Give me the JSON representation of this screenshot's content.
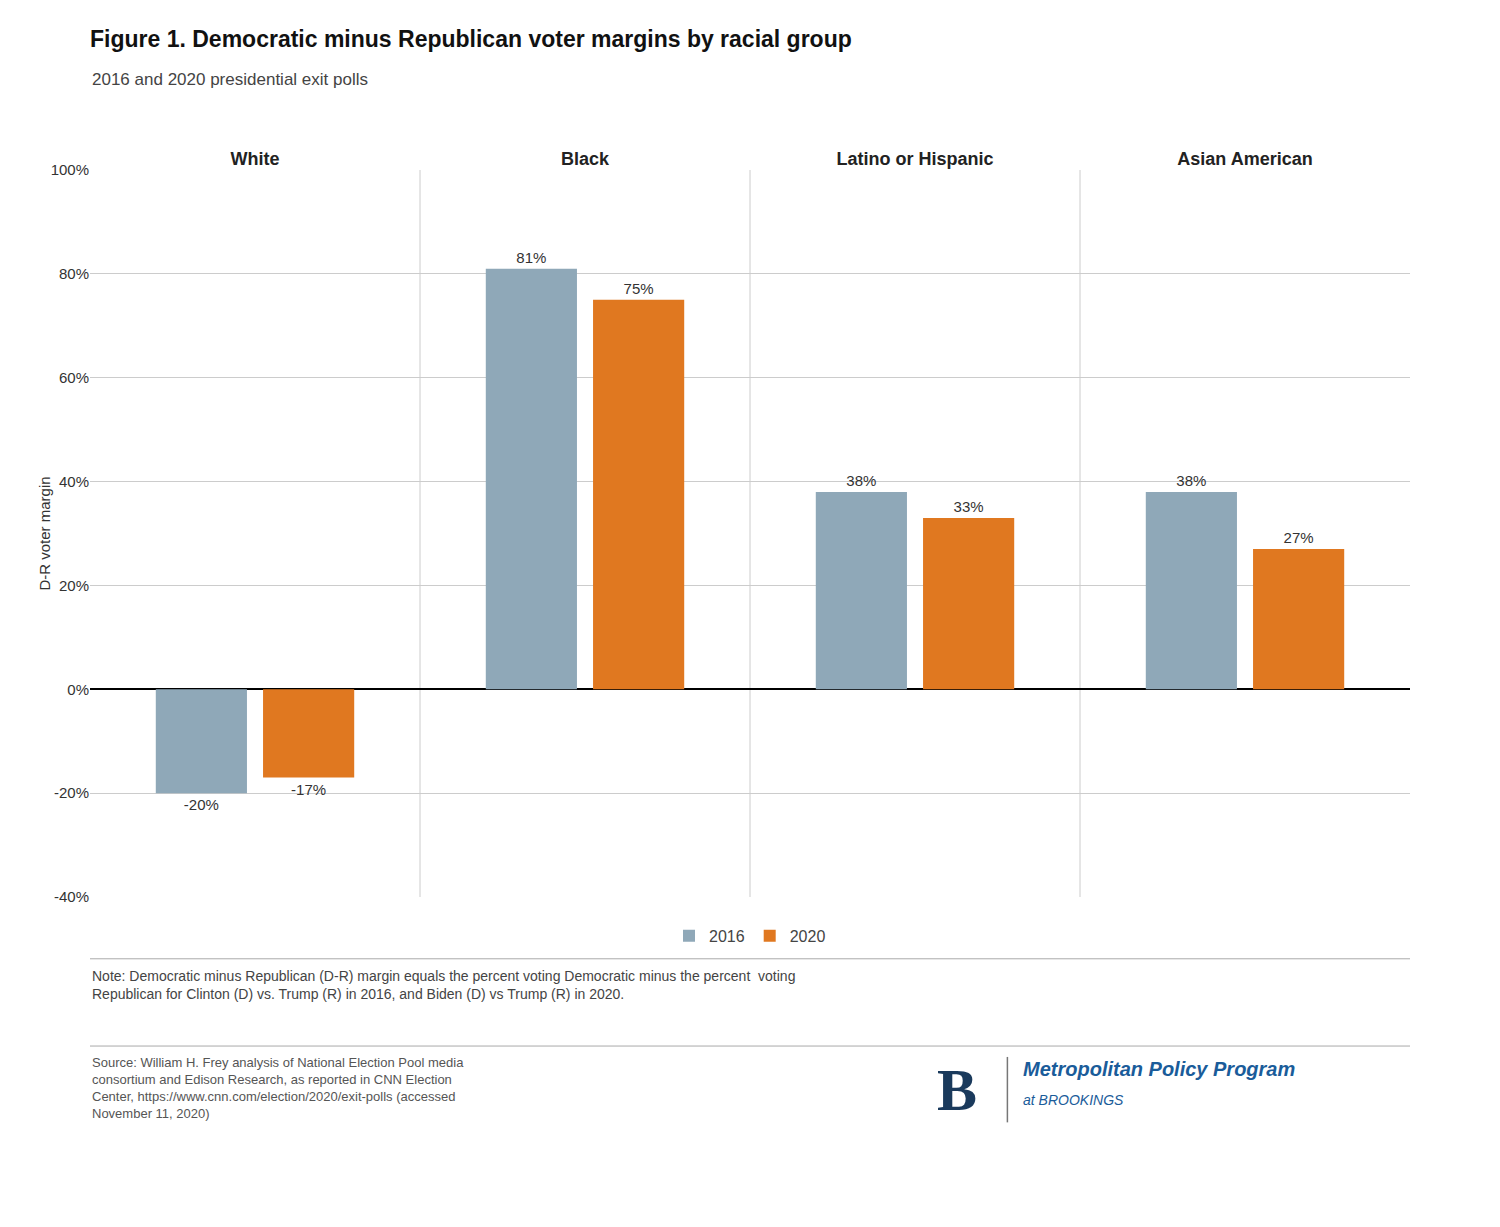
{
  "chart_data": {
    "type": "bar",
    "title": "Figure 1. Democratic minus Republican voter margins by racial group",
    "subtitle": "2016 and 2020 presidential exit polls",
    "ylabel": "D-R voter margin",
    "categories": [
      "White",
      "Black",
      "Latino or Hispanic",
      "Asian American"
    ],
    "series": [
      {
        "name": "2016",
        "color": "#8fa8b8",
        "values": [
          -20,
          81,
          38,
          38
        ],
        "value_labels": [
          "-20%",
          "81%",
          "38%",
          "38%"
        ]
      },
      {
        "name": "2020",
        "color": "#e07820",
        "values": [
          -17,
          75,
          33,
          27
        ],
        "value_labels": [
          "-17%",
          "75%",
          "33%",
          "27%"
        ]
      }
    ],
    "ylim": [
      -40,
      100
    ],
    "yticks": [
      {
        "value": -40,
        "label": "-40%"
      },
      {
        "value": -20,
        "label": "-20%"
      },
      {
        "value": 0,
        "label": "0%"
      },
      {
        "value": 20,
        "label": "20%"
      },
      {
        "value": 40,
        "label": "40%"
      },
      {
        "value": 60,
        "label": "60%"
      },
      {
        "value": 80,
        "label": "80%"
      },
      {
        "value": 100,
        "label": "100%"
      }
    ],
    "grid": true,
    "legend": "bottom",
    "data_labels": true,
    "annotations": [
      "Note: Democratic minus Republican (D-R) margin equals the percent voting Democratic minus the percent  voting\nRepublican for Clinton (D) vs. Trump (R) in 2016, and Biden (D) vs Trump (R) in 2020.",
      "Source: William H. Frey analysis of National Election Pool media\nconsortium and Edison Research, as reported in CNN Election\nCenter, https://www.cnn.com/election/2020/exit-polls (accessed\nNovember 11, 2020)",
      "B",
      "Metropolitan Policy Program",
      "at BROOKINGS"
    ]
  }
}
